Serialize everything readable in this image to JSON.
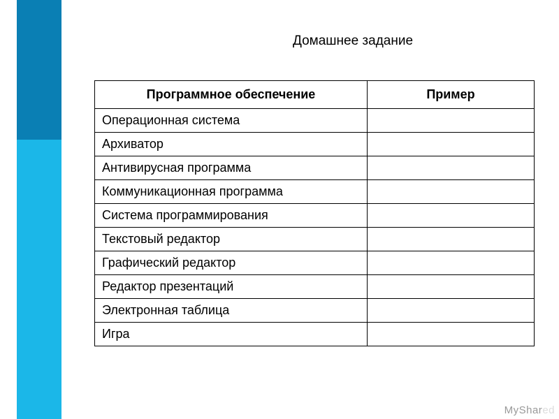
{
  "sidebar": {
    "top_color": "#0a7fb4",
    "bottom_color": "#1bb7e8"
  },
  "title": "Домашнее задание",
  "table": {
    "columns": [
      "Программное обеспечение",
      "Пример"
    ],
    "rows": [
      [
        "Операционная система",
        ""
      ],
      [
        "Архиватор",
        ""
      ],
      [
        "Антивирусная программа",
        ""
      ],
      [
        "Коммуникационная программа",
        ""
      ],
      [
        "Система программирования",
        ""
      ],
      [
        "Текстовый редактор",
        ""
      ],
      [
        "Графический редактор",
        ""
      ],
      [
        "Редактор презентаций",
        ""
      ],
      [
        "Электронная таблица",
        ""
      ],
      [
        "Игра",
        ""
      ]
    ],
    "border_color": "#000000",
    "header_fontsize": 18,
    "cell_fontsize": 18,
    "header_fontweight": 700
  },
  "watermark": {
    "part1": "MyShar",
    "part2": "ed"
  },
  "background_color": "#ffffff"
}
